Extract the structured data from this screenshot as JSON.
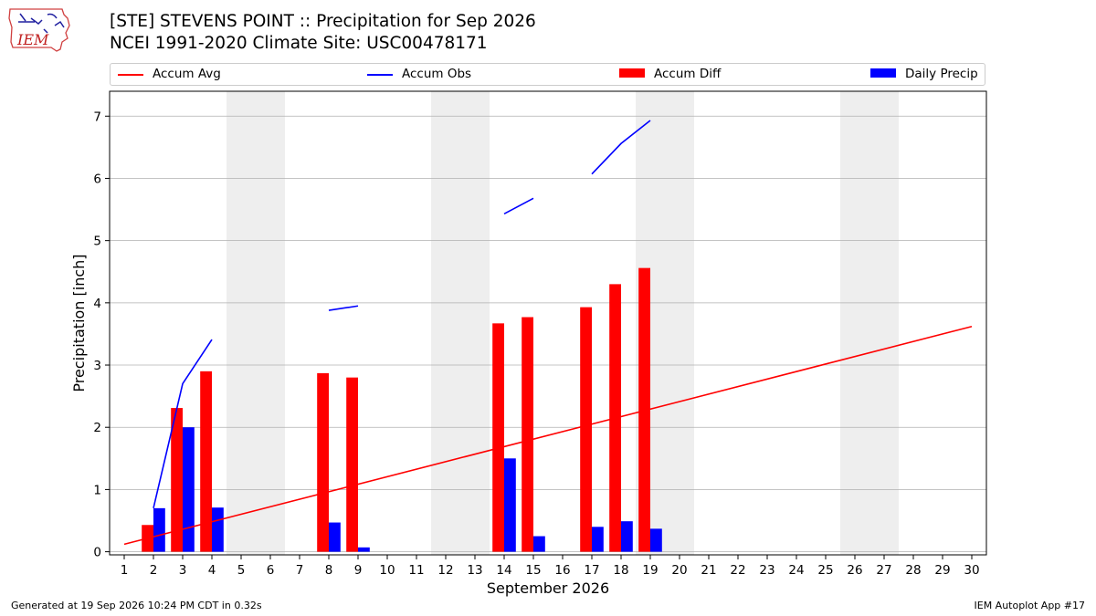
{
  "header": {
    "logo_text": "IEM",
    "title_line1": "[STE] STEVENS POINT :: Precipitation for Sep 2026",
    "title_line2": "NCEI 1991-2020 Climate Site: USC00478171"
  },
  "footer": {
    "generated": "Generated at 19 Sep 2026 10:24 PM CDT in 0.32s",
    "app": "IEM Autoplot App #17"
  },
  "colors": {
    "avg": "#ff0000",
    "obs": "#0000ff",
    "diff": "#ff0000",
    "daily": "#0000ff",
    "weekend_shade": "#eeeeee",
    "grid": "#b0b0b0"
  },
  "chart_data": {
    "type": "bar",
    "title": "[STE] STEVENS POINT :: Precipitation for Sep 2026",
    "subtitle": "NCEI 1991-2020 Climate Site: USC00478171",
    "xlabel": "September 2026",
    "ylabel": "Precipitation [inch]",
    "xlim": [
      0.5,
      30.5
    ],
    "ylim": [
      -0.05,
      7.4
    ],
    "yticks": [
      0,
      1,
      2,
      3,
      4,
      5,
      6,
      7
    ],
    "x": [
      1,
      2,
      3,
      4,
      5,
      6,
      7,
      8,
      9,
      10,
      11,
      12,
      13,
      14,
      15,
      16,
      17,
      18,
      19,
      20,
      21,
      22,
      23,
      24,
      25,
      26,
      27,
      28,
      29,
      30
    ],
    "weekend_spans": [
      [
        4.5,
        6.5
      ],
      [
        11.5,
        13.5
      ],
      [
        18.5,
        20.5
      ],
      [
        25.5,
        27.5
      ]
    ],
    "grid": true,
    "legend_position": "top",
    "series": [
      {
        "name": "Accum Avg",
        "kind": "line",
        "x": [
          1,
          30
        ],
        "values": [
          0.12,
          3.62
        ]
      },
      {
        "name": "Accum Obs",
        "kind": "line",
        "segments": [
          {
            "x": [
              2,
              3,
              4
            ],
            "values": [
              0.7,
              2.7,
              3.41
            ]
          },
          {
            "x": [
              8,
              9
            ],
            "values": [
              3.88,
              3.95
            ]
          },
          {
            "x": [
              14,
              15
            ],
            "values": [
              5.43,
              5.68
            ]
          },
          {
            "x": [
              17,
              18,
              19
            ],
            "values": [
              6.07,
              6.56,
              6.93
            ]
          }
        ]
      },
      {
        "name": "Accum Diff",
        "kind": "bar",
        "x": [
          2,
          3,
          4,
          8,
          9,
          14,
          15,
          17,
          18,
          19
        ],
        "values": [
          0.43,
          2.31,
          2.9,
          2.87,
          2.8,
          3.67,
          3.77,
          3.93,
          4.3,
          4.56
        ]
      },
      {
        "name": "Daily Precip",
        "kind": "bar",
        "x": [
          2,
          3,
          4,
          8,
          9,
          14,
          15,
          17,
          18,
          19
        ],
        "values": [
          0.7,
          2.0,
          0.71,
          0.47,
          0.07,
          1.5,
          0.25,
          0.4,
          0.49,
          0.37
        ]
      }
    ]
  }
}
